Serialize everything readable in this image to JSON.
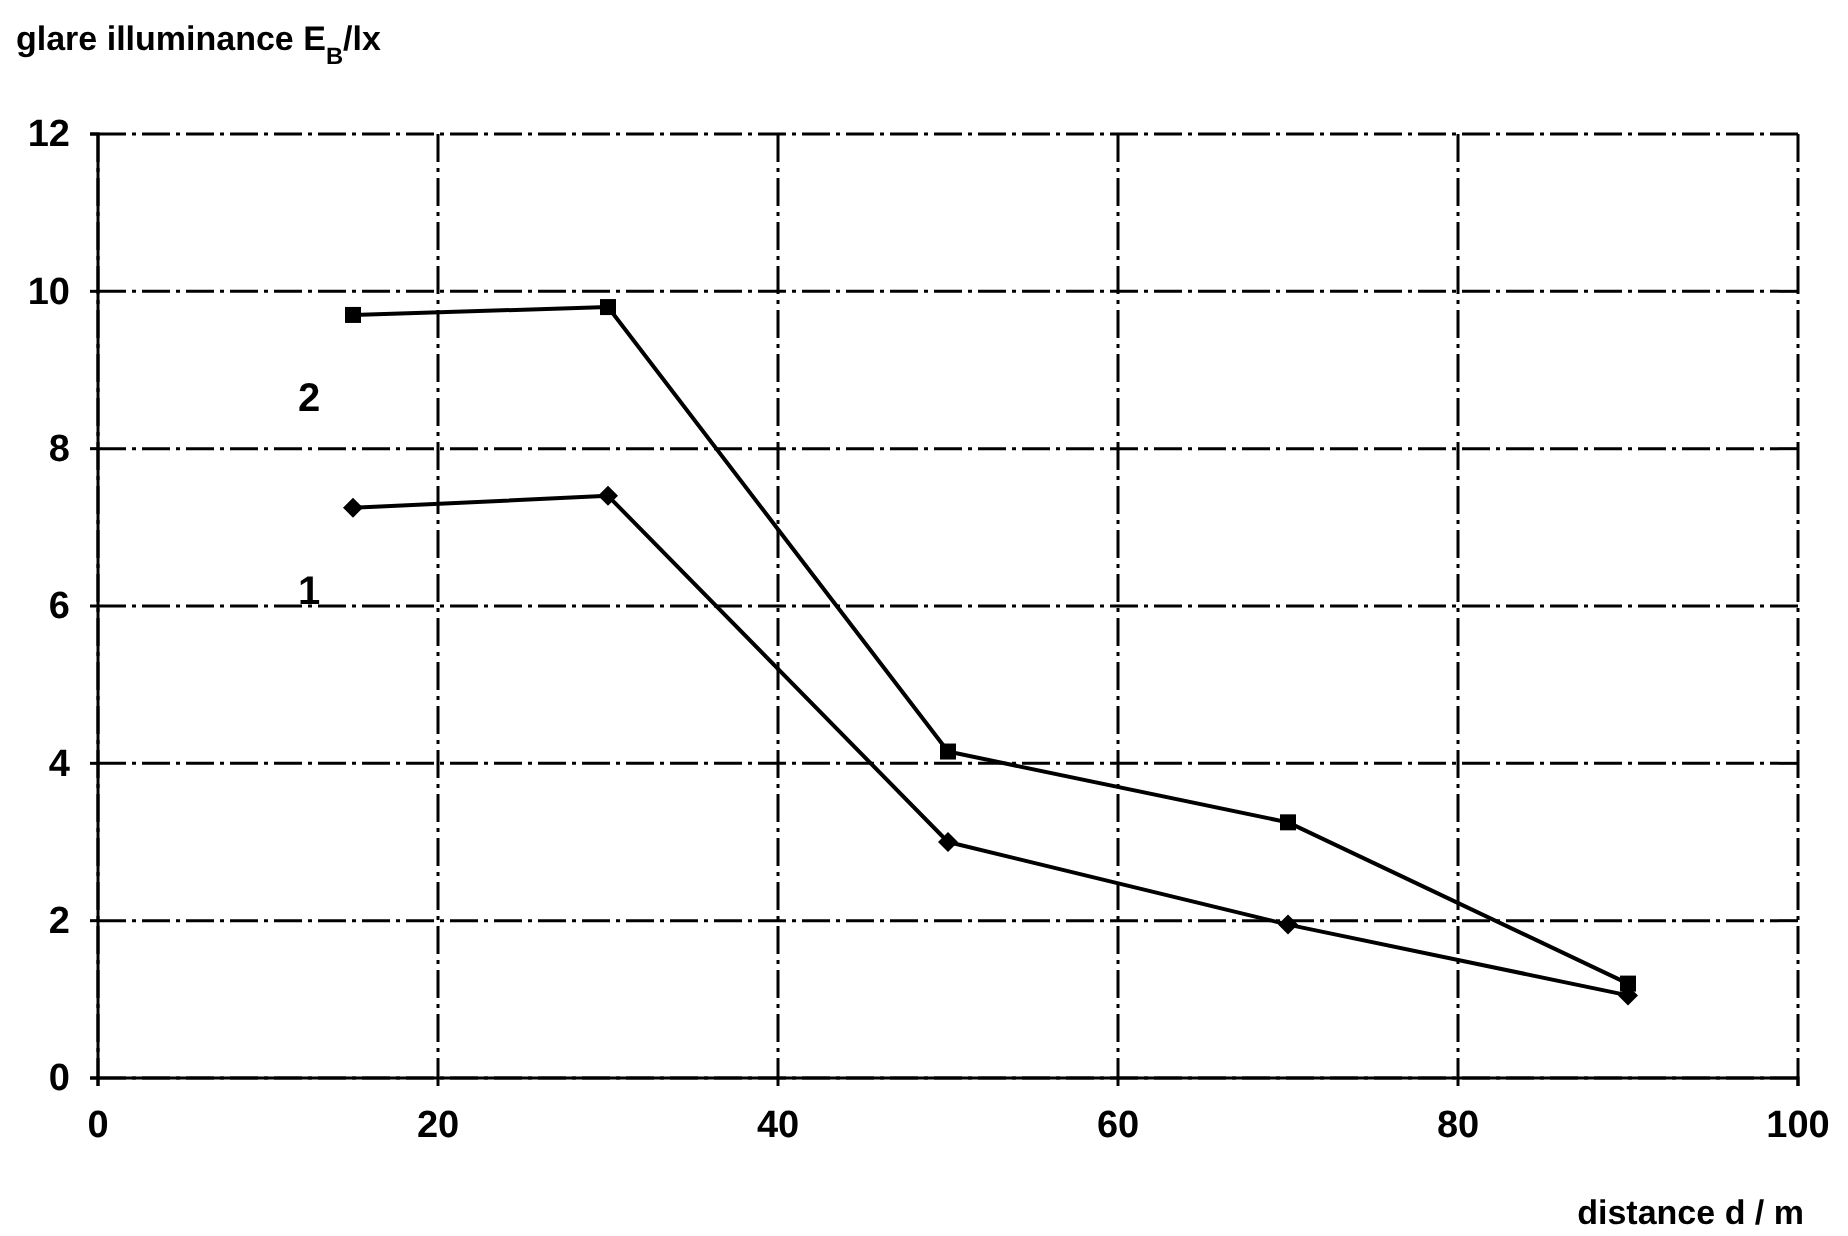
{
  "chart_data": {
    "type": "line",
    "ylabel": "glare illuminance E$_{B}$/lx",
    "xlabel": "distance d / m",
    "xlim": [
      0,
      100
    ],
    "xticks": [
      0,
      20,
      40,
      60,
      80,
      100
    ],
    "ylim": [
      0,
      12
    ],
    "yticks": [
      0,
      2,
      4,
      6,
      8,
      10,
      12
    ],
    "grid": true,
    "series": [
      {
        "name": "2",
        "color": "#000000",
        "marker": "square",
        "x": [
          15,
          30,
          50,
          70,
          90
        ],
        "values": [
          9.7,
          9.8,
          4.15,
          3.25,
          1.2
        ]
      },
      {
        "name": "1",
        "color": "#000000",
        "marker": "diamond",
        "x": [
          15,
          30,
          50,
          70,
          90
        ],
        "values": [
          7.25,
          7.4,
          3.0,
          1.95,
          1.05
        ]
      }
    ]
  }
}
